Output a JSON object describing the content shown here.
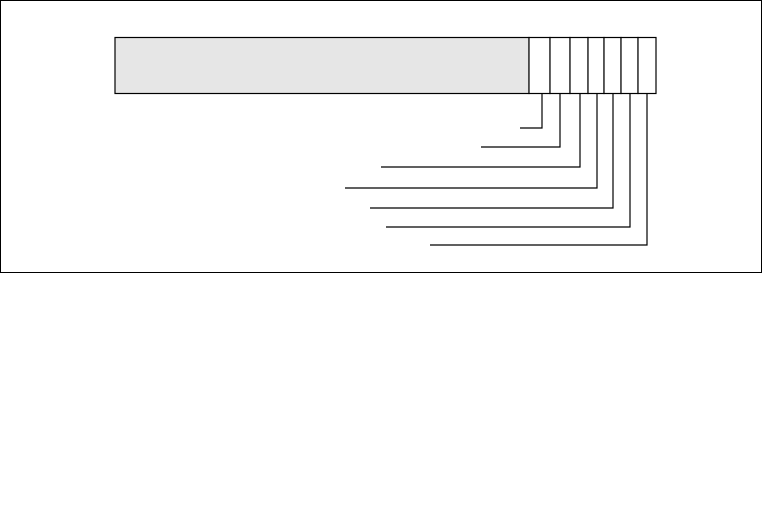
{
  "diagram": {
    "colors": {
      "stroke": "#000000",
      "main_field_fill": "#e6e6e6",
      "cell_fill": "#ffffff",
      "background": "#ffffff"
    },
    "cell_count": 7,
    "leader_count": 7
  }
}
